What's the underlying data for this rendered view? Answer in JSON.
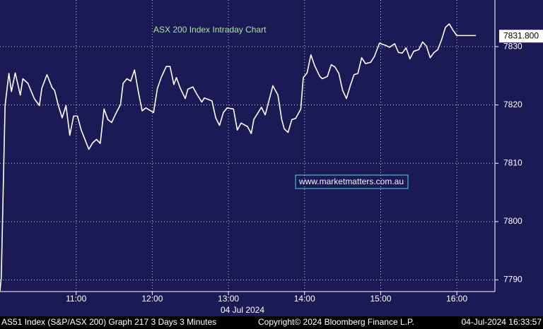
{
  "chart_data": {
    "type": "line",
    "title": "ASX 200 Index Intraday Chart",
    "watermark": "www.marketmatters.com.au",
    "date_label": "04 Jul 2024",
    "footer": [
      "AS51 Index (S&P/ASX 200) Graph 217 3 Days 3 Minutes",
      "Copyright© 2024 Bloomberg Finance L.P.",
      "04-Jul-2024 16:33:57"
    ],
    "last_price": {
      "value": 7831.8,
      "label": "7831.800"
    },
    "grid": true,
    "x": [
      600,
      601,
      604,
      607,
      609,
      612,
      616,
      618,
      622,
      627,
      631,
      633,
      637,
      641,
      643,
      646,
      649,
      652,
      655,
      658,
      661,
      664,
      670,
      673,
      676,
      679,
      682,
      685,
      688,
      691,
      695,
      697,
      700,
      703,
      706,
      709,
      712,
      715,
      721,
      724,
      727,
      731,
      734,
      737,
      739,
      742,
      746,
      748,
      752,
      755,
      759,
      761,
      767,
      770,
      773,
      776,
      779,
      784,
      787,
      790,
      795,
      798,
      800,
      806,
      809,
      812,
      815,
      819,
      822,
      824,
      827,
      830,
      833,
      837,
      839,
      842,
      845,
      848,
      852,
      854,
      858,
      861,
      864,
      867,
      870,
      873,
      876,
      879,
      882,
      885,
      888,
      892,
      895,
      899,
      904,
      907,
      911,
      914,
      917,
      920,
      923,
      926,
      930,
      933,
      936,
      939,
      942,
      945,
      948,
      951,
      954,
      957,
      960,
      975
    ],
    "series": [
      {
        "name": "AS51 Index",
        "color": "#ffffff",
        "values": [
          7788.1,
          7790.4,
          7819.9,
          7825.4,
          7822.3,
          7825.5,
          7821.7,
          7824.5,
          7823.7,
          7821.1,
          7819.9,
          7822.9,
          7825.2,
          7823,
          7822.5,
          7819.9,
          7817.8,
          7819.9,
          7814.8,
          7818.1,
          7818.1,
          7815.7,
          7812.4,
          7813.5,
          7814.1,
          7813.4,
          7819.3,
          7817.5,
          7817,
          7818.4,
          7820.1,
          7823.7,
          7824.5,
          7824.1,
          7826,
          7822.3,
          7819,
          7819.5,
          7818.7,
          7822.8,
          7824.7,
          7826.6,
          7826.6,
          7823.5,
          7824.7,
          7822.9,
          7821.1,
          7822.7,
          7823.1,
          7821.9,
          7820.5,
          7821.2,
          7820.7,
          7817.8,
          7816.5,
          7818.7,
          7819.5,
          7819.3,
          7815.7,
          7816.9,
          7816.3,
          7815.1,
          7817.5,
          7819.6,
          7818.3,
          7820.8,
          7823.3,
          7821.7,
          7817.5,
          7815.9,
          7815.3,
          7817.5,
          7817.7,
          7819.3,
          7824.7,
          7825.5,
          7828.6,
          7826.7,
          7824.9,
          7824.5,
          7824.9,
          7826.9,
          7826.5,
          7825.4,
          7822.5,
          7821.1,
          7823.3,
          7825.2,
          7825.4,
          7828.1,
          7827.1,
          7827.3,
          7828.3,
          7830.6,
          7830.2,
          7829.9,
          7830.5,
          7829,
          7828.9,
          7829.8,
          7827.9,
          7829.2,
          7829.5,
          7830.8,
          7830.1,
          7828.1,
          7829,
          7829.5,
          7831.2,
          7833.3,
          7833.9,
          7832.8,
          7831.9,
          7831.9
        ]
      }
    ],
    "xlim": [
      600,
      990
    ],
    "xticks": [
      {
        "value": 660,
        "label": "11:00"
      },
      {
        "value": 720,
        "label": "12:00"
      },
      {
        "value": 780,
        "label": "13:00"
      },
      {
        "value": 840,
        "label": "14:00"
      },
      {
        "value": 900,
        "label": "15:00"
      },
      {
        "value": 960,
        "label": "16:00"
      }
    ],
    "ylim": [
      7788,
      7838
    ],
    "yticks": [
      7790,
      7800,
      7810,
      7820,
      7830
    ]
  }
}
